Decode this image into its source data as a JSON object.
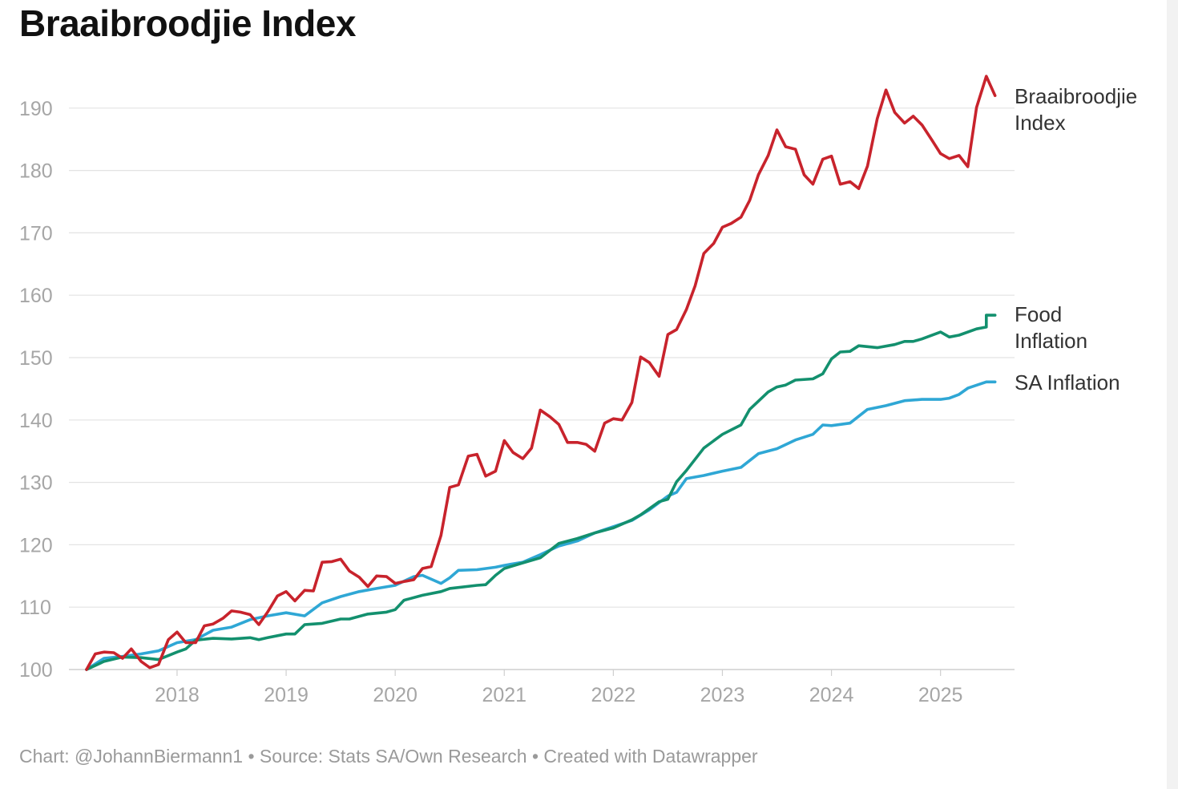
{
  "title": "Braaibroodjie Index",
  "footer": {
    "chart_credit": "Chart: @JohannBiermann1",
    "separator": "•",
    "source": "Source: Stats SA/Own Research",
    "created_with": "Created with Datawrapper"
  },
  "colors": {
    "braai": "#c8232c",
    "food": "#13906e",
    "sa": "#2fa7d5",
    "grid": "#e3e3e3",
    "tick": "#a6a6a6",
    "label": "#333333"
  },
  "chart_data": {
    "type": "line",
    "title": "Braaibroodjie Index",
    "xlabel": "",
    "ylabel": "",
    "ylim": [
      100,
      194
    ],
    "xlim": [
      2017.17,
      2025.5
    ],
    "y_ticks": [
      100,
      110,
      120,
      130,
      140,
      150,
      160,
      170,
      180,
      190
    ],
    "x_ticks": [
      2018,
      2019,
      2020,
      2021,
      2022,
      2023,
      2024,
      2025
    ],
    "x_tick_labels": [
      "2018",
      "2019",
      "2020",
      "2021",
      "2022",
      "2023",
      "2024",
      "2025"
    ],
    "grid": true,
    "legend": "inline labels at right end of lines",
    "series": [
      {
        "name": "Braaibroodjie Index",
        "label_lines": [
          "Braaibroodjie",
          "Index"
        ],
        "color_key": "braai",
        "points": [
          [
            2017.17,
            100.0
          ],
          [
            2017.25,
            102.5
          ],
          [
            2017.33,
            102.8
          ],
          [
            2017.42,
            102.7
          ],
          [
            2017.5,
            101.8
          ],
          [
            2017.58,
            103.3
          ],
          [
            2017.67,
            101.3
          ],
          [
            2017.75,
            100.3
          ],
          [
            2017.83,
            100.8
          ],
          [
            2017.92,
            104.8
          ],
          [
            2018.0,
            106.0
          ],
          [
            2018.08,
            104.3
          ],
          [
            2018.17,
            104.3
          ],
          [
            2018.25,
            107.0
          ],
          [
            2018.33,
            107.3
          ],
          [
            2018.42,
            108.2
          ],
          [
            2018.5,
            109.4
          ],
          [
            2018.58,
            109.2
          ],
          [
            2018.67,
            108.8
          ],
          [
            2018.75,
            107.2
          ],
          [
            2018.83,
            109.2
          ],
          [
            2018.92,
            111.8
          ],
          [
            2019.0,
            112.5
          ],
          [
            2019.08,
            111.0
          ],
          [
            2019.17,
            112.7
          ],
          [
            2019.25,
            112.6
          ],
          [
            2019.33,
            117.2
          ],
          [
            2019.42,
            117.3
          ],
          [
            2019.5,
            117.7
          ],
          [
            2019.58,
            115.8
          ],
          [
            2019.67,
            114.8
          ],
          [
            2019.75,
            113.3
          ],
          [
            2019.83,
            115.0
          ],
          [
            2019.92,
            114.9
          ],
          [
            2020.0,
            113.8
          ],
          [
            2020.08,
            114.1
          ],
          [
            2020.17,
            114.4
          ],
          [
            2020.25,
            116.2
          ],
          [
            2020.33,
            116.5
          ],
          [
            2020.42,
            121.5
          ],
          [
            2020.5,
            129.2
          ],
          [
            2020.58,
            129.6
          ],
          [
            2020.67,
            134.2
          ],
          [
            2020.75,
            134.5
          ],
          [
            2020.83,
            131.0
          ],
          [
            2020.92,
            131.8
          ],
          [
            2021.0,
            136.7
          ],
          [
            2021.08,
            134.8
          ],
          [
            2021.17,
            133.8
          ],
          [
            2021.25,
            135.5
          ],
          [
            2021.33,
            141.6
          ],
          [
            2021.42,
            140.5
          ],
          [
            2021.5,
            139.3
          ],
          [
            2021.58,
            136.4
          ],
          [
            2021.67,
            136.4
          ],
          [
            2021.75,
            136.1
          ],
          [
            2021.83,
            135.0
          ],
          [
            2021.92,
            139.5
          ],
          [
            2022.0,
            140.2
          ],
          [
            2022.08,
            140.0
          ],
          [
            2022.17,
            142.8
          ],
          [
            2022.25,
            150.1
          ],
          [
            2022.33,
            149.2
          ],
          [
            2022.42,
            147.0
          ],
          [
            2022.5,
            153.7
          ],
          [
            2022.58,
            154.5
          ],
          [
            2022.67,
            157.7
          ],
          [
            2022.75,
            161.5
          ],
          [
            2022.83,
            166.7
          ],
          [
            2022.92,
            168.3
          ],
          [
            2023.0,
            170.9
          ],
          [
            2023.08,
            171.5
          ],
          [
            2023.17,
            172.5
          ],
          [
            2023.25,
            175.2
          ],
          [
            2023.33,
            179.3
          ],
          [
            2023.42,
            182.4
          ],
          [
            2023.5,
            186.5
          ],
          [
            2023.58,
            183.8
          ],
          [
            2023.67,
            183.4
          ],
          [
            2023.75,
            179.3
          ],
          [
            2023.83,
            177.8
          ],
          [
            2023.92,
            181.8
          ],
          [
            2024.0,
            182.3
          ],
          [
            2024.08,
            177.8
          ],
          [
            2024.17,
            178.2
          ],
          [
            2024.25,
            177.1
          ],
          [
            2024.33,
            180.7
          ],
          [
            2024.42,
            188.3
          ],
          [
            2024.5,
            192.9
          ],
          [
            2024.58,
            189.3
          ],
          [
            2024.67,
            187.6
          ],
          [
            2024.75,
            188.7
          ],
          [
            2024.83,
            187.3
          ],
          [
            2024.92,
            184.9
          ],
          [
            2025.0,
            182.7
          ],
          [
            2025.08,
            181.9
          ],
          [
            2025.17,
            182.4
          ],
          [
            2025.25,
            180.6
          ],
          [
            2025.33,
            190.1
          ],
          [
            2025.42,
            195.1
          ],
          [
            2025.5,
            192.0
          ]
        ]
      },
      {
        "name": "Food Inflation",
        "label_lines": [
          "Food",
          "Inflation"
        ],
        "color_key": "food",
        "points": [
          [
            2017.17,
            100.0
          ],
          [
            2017.33,
            101.3
          ],
          [
            2017.5,
            102.0
          ],
          [
            2017.67,
            101.9
          ],
          [
            2017.83,
            101.6
          ],
          [
            2018.0,
            102.8
          ],
          [
            2018.08,
            103.3
          ],
          [
            2018.17,
            104.7
          ],
          [
            2018.33,
            105.0
          ],
          [
            2018.5,
            104.9
          ],
          [
            2018.67,
            105.1
          ],
          [
            2018.75,
            104.8
          ],
          [
            2018.83,
            105.1
          ],
          [
            2019.0,
            105.7
          ],
          [
            2019.08,
            105.7
          ],
          [
            2019.17,
            107.2
          ],
          [
            2019.33,
            107.4
          ],
          [
            2019.5,
            108.1
          ],
          [
            2019.58,
            108.1
          ],
          [
            2019.75,
            108.9
          ],
          [
            2019.92,
            109.2
          ],
          [
            2020.0,
            109.6
          ],
          [
            2020.08,
            111.1
          ],
          [
            2020.25,
            111.9
          ],
          [
            2020.42,
            112.5
          ],
          [
            2020.5,
            113.0
          ],
          [
            2020.75,
            113.5
          ],
          [
            2020.83,
            113.6
          ],
          [
            2020.92,
            115.1
          ],
          [
            2021.0,
            116.2
          ],
          [
            2021.17,
            117.1
          ],
          [
            2021.33,
            117.9
          ],
          [
            2021.5,
            120.2
          ],
          [
            2021.67,
            121.0
          ],
          [
            2021.83,
            121.9
          ],
          [
            2022.0,
            122.7
          ],
          [
            2022.17,
            124.0
          ],
          [
            2022.25,
            124.8
          ],
          [
            2022.42,
            126.9
          ],
          [
            2022.5,
            127.3
          ],
          [
            2022.58,
            130.1
          ],
          [
            2022.67,
            131.9
          ],
          [
            2022.83,
            135.5
          ],
          [
            2023.0,
            137.7
          ],
          [
            2023.17,
            139.2
          ],
          [
            2023.25,
            141.7
          ],
          [
            2023.42,
            144.5
          ],
          [
            2023.5,
            145.3
          ],
          [
            2023.58,
            145.6
          ],
          [
            2023.67,
            146.4
          ],
          [
            2023.83,
            146.6
          ],
          [
            2023.92,
            147.4
          ],
          [
            2024.0,
            149.8
          ],
          [
            2024.08,
            150.9
          ],
          [
            2024.17,
            151.0
          ],
          [
            2024.25,
            151.9
          ],
          [
            2024.42,
            151.6
          ],
          [
            2024.58,
            152.1
          ],
          [
            2024.67,
            152.6
          ],
          [
            2024.75,
            152.6
          ],
          [
            2024.83,
            153.0
          ],
          [
            2025.0,
            154.1
          ],
          [
            2025.08,
            153.3
          ],
          [
            2025.17,
            153.6
          ],
          [
            2025.33,
            154.6
          ],
          [
            2025.42,
            154.9
          ],
          [
            2025.42,
            156.8
          ],
          [
            2025.5,
            156.8
          ]
        ]
      },
      {
        "name": "SA Inflation",
        "label_lines": [
          "SA Inflation"
        ],
        "color_key": "sa",
        "points": [
          [
            2017.17,
            100.0
          ],
          [
            2017.33,
            101.8
          ],
          [
            2017.5,
            102.1
          ],
          [
            2017.67,
            102.5
          ],
          [
            2017.83,
            103.0
          ],
          [
            2018.0,
            104.3
          ],
          [
            2018.17,
            104.8
          ],
          [
            2018.33,
            106.3
          ],
          [
            2018.5,
            106.8
          ],
          [
            2018.67,
            108.0
          ],
          [
            2018.83,
            108.6
          ],
          [
            2019.0,
            109.1
          ],
          [
            2019.17,
            108.6
          ],
          [
            2019.33,
            110.7
          ],
          [
            2019.5,
            111.7
          ],
          [
            2019.67,
            112.5
          ],
          [
            2019.83,
            113.0
          ],
          [
            2020.0,
            113.5
          ],
          [
            2020.17,
            114.9
          ],
          [
            2020.25,
            115.1
          ],
          [
            2020.42,
            113.8
          ],
          [
            2020.5,
            114.7
          ],
          [
            2020.58,
            115.9
          ],
          [
            2020.75,
            116.0
          ],
          [
            2020.92,
            116.4
          ],
          [
            2021.0,
            116.7
          ],
          [
            2021.17,
            117.2
          ],
          [
            2021.33,
            118.4
          ],
          [
            2021.5,
            119.8
          ],
          [
            2021.67,
            120.6
          ],
          [
            2021.83,
            121.9
          ],
          [
            2022.0,
            122.9
          ],
          [
            2022.17,
            123.9
          ],
          [
            2022.33,
            125.6
          ],
          [
            2022.5,
            127.8
          ],
          [
            2022.58,
            128.4
          ],
          [
            2022.67,
            130.6
          ],
          [
            2022.83,
            131.1
          ],
          [
            2023.0,
            131.8
          ],
          [
            2023.17,
            132.4
          ],
          [
            2023.33,
            134.6
          ],
          [
            2023.5,
            135.4
          ],
          [
            2023.67,
            136.8
          ],
          [
            2023.83,
            137.7
          ],
          [
            2023.92,
            139.2
          ],
          [
            2024.0,
            139.1
          ],
          [
            2024.17,
            139.5
          ],
          [
            2024.33,
            141.7
          ],
          [
            2024.5,
            142.3
          ],
          [
            2024.67,
            143.1
          ],
          [
            2024.83,
            143.3
          ],
          [
            2025.0,
            143.3
          ],
          [
            2025.08,
            143.5
          ],
          [
            2025.17,
            144.1
          ],
          [
            2025.25,
            145.1
          ],
          [
            2025.42,
            146.1
          ],
          [
            2025.5,
            146.1
          ]
        ]
      }
    ]
  }
}
